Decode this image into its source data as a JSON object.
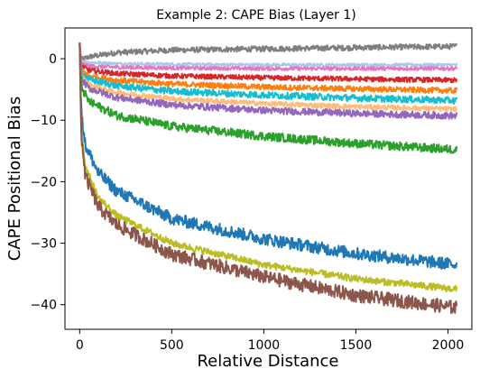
{
  "chart_data": {
    "type": "line",
    "title": "Example 2: CAPE Bias (Layer 1)",
    "xlabel": "Relative Distance",
    "ylabel": "CAPE Positional Bias",
    "xlim": [
      -80,
      2130
    ],
    "ylim": [
      -44,
      5
    ],
    "xticks": [
      0,
      500,
      1000,
      1500,
      2000
    ],
    "yticks": [
      0,
      -10,
      -20,
      -30,
      -40
    ],
    "xtick_labels": [
      "0",
      "500",
      "1000",
      "1500",
      "2000"
    ],
    "ytick_labels": [
      "0",
      "−10",
      "−20",
      "−30",
      "−40"
    ],
    "grid": false,
    "legend": "none",
    "x_max": 2047,
    "series": [
      {
        "color": "#7f7f7f",
        "start": 2.5,
        "end": 2.0,
        "noise": 0.45,
        "profile": [
          [
            0,
            2.5
          ],
          [
            8,
            -0.2
          ],
          [
            50,
            0.3
          ],
          [
            200,
            1.0
          ],
          [
            500,
            1.4
          ],
          [
            1000,
            1.6
          ],
          [
            1500,
            1.8
          ],
          [
            2047,
            2.0
          ]
        ]
      },
      {
        "color": "#aec7e8",
        "start": 2.5,
        "end": -1.0,
        "noise": 0.25,
        "profile": [
          [
            0,
            2.5
          ],
          [
            8,
            -0.3
          ],
          [
            50,
            -0.6
          ],
          [
            200,
            -0.8
          ],
          [
            500,
            -0.9
          ],
          [
            1000,
            -1.0
          ],
          [
            1500,
            -1.0
          ],
          [
            2047,
            -1.0
          ]
        ]
      },
      {
        "color": "#e377c2",
        "start": 2.5,
        "end": -1.6,
        "noise": 0.3,
        "profile": [
          [
            0,
            2.5
          ],
          [
            8,
            -0.8
          ],
          [
            50,
            -1.2
          ],
          [
            200,
            -1.4
          ],
          [
            500,
            -1.5
          ],
          [
            1000,
            -1.6
          ],
          [
            1500,
            -1.6
          ],
          [
            2047,
            -1.6
          ]
        ]
      },
      {
        "color": "#d62728",
        "start": 2.5,
        "end": -3.5,
        "noise": 0.4,
        "profile": [
          [
            0,
            2.5
          ],
          [
            8,
            -1.2
          ],
          [
            50,
            -1.9
          ],
          [
            200,
            -2.4
          ],
          [
            500,
            -2.8
          ],
          [
            1000,
            -3.1
          ],
          [
            1500,
            -3.3
          ],
          [
            2047,
            -3.5
          ]
        ]
      },
      {
        "color": "#ff7f0e",
        "start": 2.5,
        "end": -5.2,
        "noise": 0.45,
        "profile": [
          [
            0,
            2.5
          ],
          [
            8,
            -1.8
          ],
          [
            50,
            -2.8
          ],
          [
            200,
            -3.5
          ],
          [
            500,
            -4.1
          ],
          [
            1000,
            -4.6
          ],
          [
            1500,
            -4.9
          ],
          [
            2047,
            -5.2
          ]
        ]
      },
      {
        "color": "#17becf",
        "start": 2.5,
        "end": -6.8,
        "noise": 0.55,
        "profile": [
          [
            0,
            2.5
          ],
          [
            8,
            -2.2
          ],
          [
            50,
            -3.4
          ],
          [
            200,
            -4.4
          ],
          [
            500,
            -5.3
          ],
          [
            1000,
            -5.9
          ],
          [
            1500,
            -6.4
          ],
          [
            2047,
            -6.8
          ]
        ]
      },
      {
        "color": "#ffbb78",
        "start": 2.5,
        "end": -8.2,
        "noise": 0.4,
        "profile": [
          [
            0,
            2.5
          ],
          [
            8,
            -2.8
          ],
          [
            50,
            -4.2
          ],
          [
            200,
            -5.5
          ],
          [
            500,
            -6.5
          ],
          [
            1000,
            -7.3
          ],
          [
            1500,
            -7.8
          ],
          [
            2047,
            -8.2
          ]
        ]
      },
      {
        "color": "#9467bd",
        "start": 2.5,
        "end": -9.3,
        "noise": 0.55,
        "profile": [
          [
            0,
            2.5
          ],
          [
            8,
            -3.3
          ],
          [
            50,
            -4.8
          ],
          [
            200,
            -6.3
          ],
          [
            500,
            -7.5
          ],
          [
            1000,
            -8.4
          ],
          [
            1500,
            -8.9
          ],
          [
            2047,
            -9.3
          ]
        ]
      },
      {
        "color": "#2ca02c",
        "start": 2.5,
        "end": -14.8,
        "noise": 0.7,
        "profile": [
          [
            0,
            2.5
          ],
          [
            8,
            -4.5
          ],
          [
            50,
            -7.0
          ],
          [
            200,
            -9.2
          ],
          [
            500,
            -11.0
          ],
          [
            1000,
            -12.6
          ],
          [
            1500,
            -13.8
          ],
          [
            2047,
            -14.8
          ]
        ]
      },
      {
        "color": "#1f77b4",
        "start": 2.5,
        "end": -33.5,
        "noise": 1.0,
        "profile": [
          [
            0,
            2.5
          ],
          [
            8,
            -8.0
          ],
          [
            30,
            -14.0
          ],
          [
            100,
            -18.5
          ],
          [
            200,
            -21.5
          ],
          [
            500,
            -26.0
          ],
          [
            1000,
            -29.3
          ],
          [
            1500,
            -31.7
          ],
          [
            2047,
            -33.5
          ]
        ]
      },
      {
        "color": "#bcbd22",
        "start": 2.5,
        "end": -37.5,
        "noise": 0.55,
        "profile": [
          [
            0,
            2.5
          ],
          [
            8,
            -11.0
          ],
          [
            30,
            -17.5
          ],
          [
            100,
            -22.5
          ],
          [
            200,
            -25.5
          ],
          [
            500,
            -30.0
          ],
          [
            1000,
            -33.5
          ],
          [
            1500,
            -35.8
          ],
          [
            2047,
            -37.5
          ]
        ]
      },
      {
        "color": "#8c564b",
        "start": 2.5,
        "end": -40.5,
        "noise": 1.1,
        "profile": [
          [
            0,
            2.5
          ],
          [
            8,
            -12.0
          ],
          [
            30,
            -19.0
          ],
          [
            100,
            -24.0
          ],
          [
            200,
            -27.0
          ],
          [
            500,
            -31.8
          ],
          [
            1000,
            -35.5
          ],
          [
            1500,
            -38.5
          ],
          [
            2047,
            -40.5
          ]
        ]
      }
    ]
  }
}
